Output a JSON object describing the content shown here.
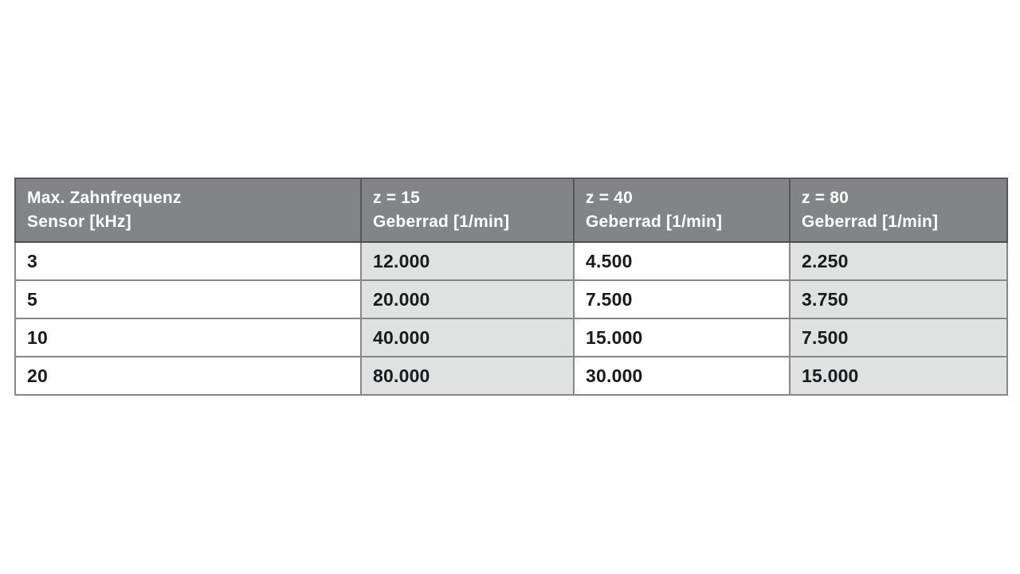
{
  "colors": {
    "header_bg": "#828487",
    "header_text": "#ffffff",
    "cell_alt_bg": "#e0e2e2",
    "cell_bg": "#fefefe",
    "cell_text": "#1b1b1d",
    "border_outer": "#4a4c4e",
    "border_inner": "#85878a"
  },
  "table": {
    "header": [
      {
        "line1": "Max. Zahnfrequenz",
        "line2": "Sensor [kHz]"
      },
      {
        "line1": "z = 15",
        "line2": "Geberrad [1/min]"
      },
      {
        "line1": "z = 40",
        "line2": "Geberrad [1/min]"
      },
      {
        "line1": "z = 80",
        "line2": "Geberrad [1/min]"
      }
    ],
    "rows": [
      {
        "sensor_khz": "3",
        "z15": "12.000",
        "z40": "4.500",
        "z80": "2.250"
      },
      {
        "sensor_khz": "5",
        "z15": "20.000",
        "z40": "7.500",
        "z80": "3.750"
      },
      {
        "sensor_khz": "10",
        "z15": "40.000",
        "z40": "15.000",
        "z80": "7.500"
      },
      {
        "sensor_khz": "20",
        "z15": "80.000",
        "z40": "30.000",
        "z80": "15.000"
      }
    ]
  }
}
